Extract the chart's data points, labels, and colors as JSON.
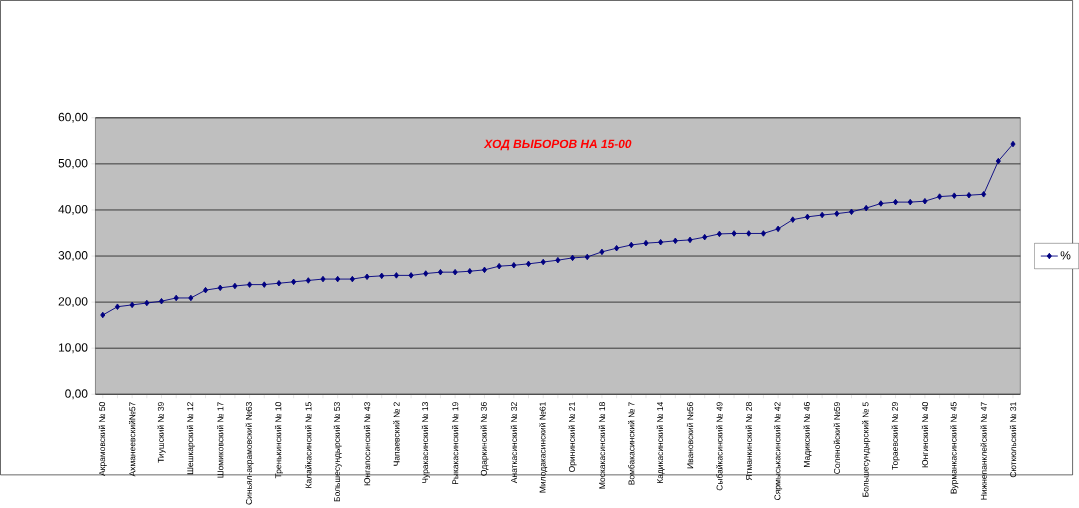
{
  "chart_data": {
    "type": "line",
    "title": "ХОД ВЫБОРОВ НА 15-00",
    "categories": [
      "Акрамовский № 50",
      null,
      "Ахманеевский№57",
      null,
      "Тиушский № 39",
      null,
      "Шешкарский № 12",
      null,
      "Шомиковский № 17",
      null,
      "Синьял-акрамовский №63",
      null,
      "Тренькинский № 10",
      null,
      "Калайкасинский № 15",
      null,
      "Большесундырский № 53",
      null,
      "Юнгапосинский № 43",
      null,
      "Чапаевский № 2",
      null,
      "Чуракасинский № 13",
      null,
      "Рыкакасинский № 19",
      null,
      "Одаркинский № 36",
      null,
      "Анаткасинский № 32",
      null,
      "Милодакасинский №61",
      null,
      "Орининский № 21",
      null,
      "Москакасинский № 18",
      null,
      "Вомбакасинский № 7",
      null,
      "Кадикасинский № 14",
      null,
      "Ивановский №56",
      null,
      "Сыбайкасинский № 49",
      null,
      "Ятманкинский № 28",
      null,
      "Сярмыськасинский № 42",
      null,
      "Мадикский № 46",
      null,
      "Солянойский №59",
      null,
      "Большесундырский № 5",
      null,
      "Тораевский № 29",
      null,
      "Юнгинский № 40",
      null,
      "Вурманкасинский № 45",
      null,
      "Нижнепанклейский № 47",
      null,
      "Сюткюльский № 31"
    ],
    "series": [
      {
        "name": "%",
        "color": "#000080",
        "values": [
          17.2,
          19.0,
          19.4,
          19.8,
          20.2,
          20.9,
          20.9,
          22.6,
          23.1,
          23.5,
          23.8,
          23.8,
          24.1,
          24.4,
          24.7,
          25.0,
          25.0,
          25.0,
          25.5,
          25.7,
          25.8,
          25.8,
          26.2,
          26.5,
          26.5,
          26.7,
          27.0,
          27.8,
          28.0,
          28.3,
          28.7,
          29.1,
          29.6,
          29.8,
          30.9,
          31.7,
          32.4,
          32.8,
          33.0,
          33.3,
          33.5,
          34.1,
          34.8,
          34.9,
          34.9,
          34.9,
          35.9,
          37.9,
          38.5,
          38.9,
          39.2,
          39.6,
          40.4,
          41.4,
          41.7,
          41.7,
          41.9,
          42.9,
          43.1,
          43.2,
          43.4,
          50.6,
          54.3
        ]
      }
    ],
    "ylim": [
      0,
      60
    ],
    "yticks": [
      {
        "value": 0,
        "label": "0,00"
      },
      {
        "value": 10,
        "label": "10,00"
      },
      {
        "value": 20,
        "label": "20,00"
      },
      {
        "value": 30,
        "label": "30,00"
      },
      {
        "value": 40,
        "label": "40,00"
      },
      {
        "value": 50,
        "label": "50,00"
      },
      {
        "value": 60,
        "label": "60,00"
      }
    ],
    "grid": "y",
    "legend": "right",
    "marker": "diamond"
  }
}
